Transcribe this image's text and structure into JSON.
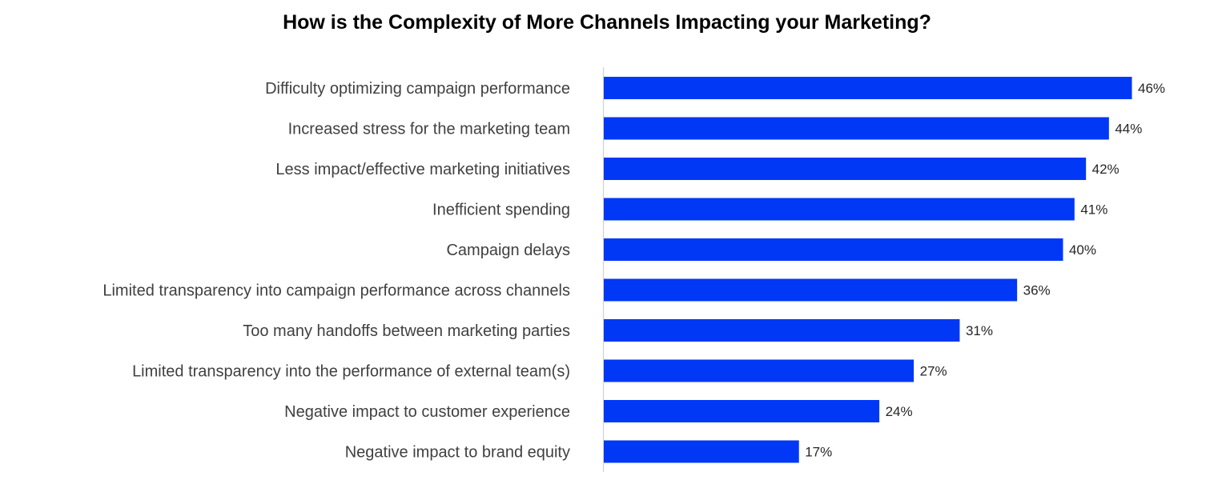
{
  "chart_data": {
    "type": "bar",
    "orientation": "horizontal",
    "title": "How is the Complexity of More Channels Impacting your Marketing?",
    "categories": [
      "Difficulty optimizing campaign performance",
      "Increased stress for the marketing team",
      "Less impact/effective marketing initiatives",
      "Inefficient spending",
      "Campaign delays",
      "Limited transparency into campaign performance across channels",
      "Too many handoffs between marketing parties",
      "Limited transparency into the performance of external team(s)",
      "Negative impact to customer experience",
      "Negative impact to brand equity"
    ],
    "values": [
      46,
      44,
      42,
      41,
      40,
      36,
      31,
      27,
      24,
      17
    ],
    "value_labels": [
      "46%",
      "44%",
      "42%",
      "41%",
      "40%",
      "36%",
      "31%",
      "27%",
      "24%",
      "17%"
    ],
    "xlim": [
      0,
      46
    ],
    "grid": false,
    "legend": "none",
    "bar_color": "#0038F5"
  }
}
